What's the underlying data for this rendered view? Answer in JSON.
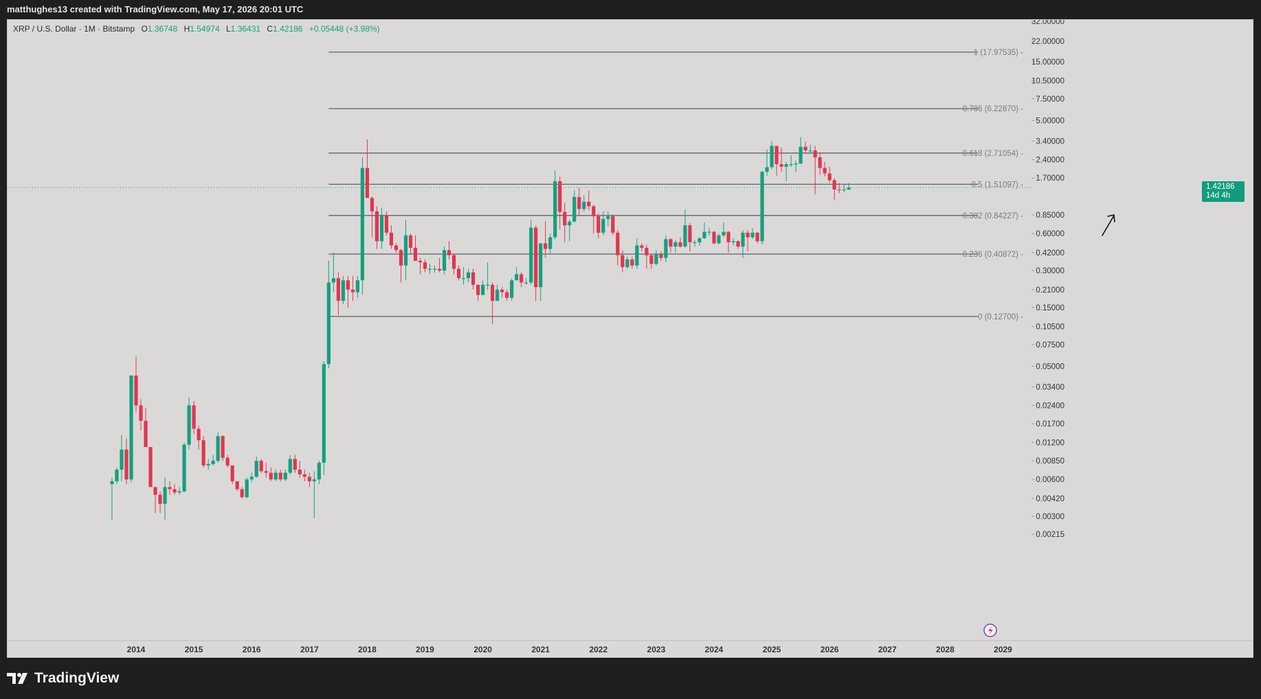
{
  "header": {
    "attribution": "matthughes13 created with TradingView.com, May 17, 2026 20:01 UTC"
  },
  "legend": {
    "symbol": "XRP / U.S. Dollar · 1M · Bitstamp",
    "open_label": "O",
    "open": "1.36748",
    "high_label": "H",
    "high": "1.54974",
    "low_label": "L",
    "low": "1.36431",
    "close_label": "C",
    "close": "1.42186",
    "change": "+0.05448 (+3.98%)"
  },
  "price_tag": {
    "value": "1.42186",
    "countdown": "14d 4h"
  },
  "footer": {
    "brand": "TradingView"
  },
  "colors": {
    "up": "#159f7e",
    "down": "#e0364f",
    "fib_line": "#59606e",
    "background": "#dad9d8",
    "axis_text": "#333333",
    "fib_text": "#7b7b7b"
  },
  "chart_data": {
    "type": "candlestick",
    "title": "XRP / U.S. Dollar · 1M · Bitstamp",
    "y_scale": "log",
    "y_ticks": [
      "32.00000",
      "22.00000",
      "15.00000",
      "10.50000",
      "7.50000",
      "5.00000",
      "3.40000",
      "2.40000",
      "1.70000",
      "0.85000",
      "0.60000",
      "0.42000",
      "0.30000",
      "0.21000",
      "0.15000",
      "0.10500",
      "0.07500",
      "0.05000",
      "0.03400",
      "0.02400",
      "0.01700",
      "0.01200",
      "0.00850",
      "0.00600",
      "0.00420",
      "0.00300",
      "0.00215"
    ],
    "x_ticks": [
      "2014",
      "2015",
      "2016",
      "2017",
      "2018",
      "2019",
      "2020",
      "2021",
      "2022",
      "2023",
      "2024",
      "2025",
      "2026",
      "2027",
      "2028",
      "2029"
    ],
    "grid": false,
    "fib_levels": [
      {
        "label": "1 (17.97535)",
        "price": 17.97535
      },
      {
        "label": "0.786 (6.22870)",
        "price": 6.2287
      },
      {
        "label": "0.618 (2.71054)",
        "price": 2.71054
      },
      {
        "label": "0.5 (1.51097)",
        "price": 1.51097
      },
      {
        "label": "0.382 (0.84227)",
        "price": 0.84227
      },
      {
        "label": "0.236 (0.40872)",
        "price": 0.40872
      },
      {
        "label": "0 (0.12700)",
        "price": 0.127
      }
    ],
    "fib_start": "2017-05",
    "last_price": 1.42186,
    "candles_monthly_approx": [
      [
        "2013-08",
        0.0055,
        0.0062,
        0.0028,
        0.0058
      ],
      [
        "2013-09",
        0.0058,
        0.0075,
        0.0055,
        0.0072
      ],
      [
        "2013-10",
        0.0072,
        0.0138,
        0.0058,
        0.0105
      ],
      [
        "2013-11",
        0.0105,
        0.013,
        0.0055,
        0.006
      ],
      [
        "2013-12",
        0.006,
        0.042,
        0.0057,
        0.042
      ],
      [
        "2014-01",
        0.042,
        0.06,
        0.021,
        0.024
      ],
      [
        "2014-02",
        0.024,
        0.027,
        0.015,
        0.018
      ],
      [
        "2014-03",
        0.018,
        0.023,
        0.012,
        0.011
      ],
      [
        "2014-04",
        0.011,
        0.011,
        0.0058,
        0.0052
      ],
      [
        "2014-05",
        0.0052,
        0.0052,
        0.0032,
        0.0045
      ],
      [
        "2014-06",
        0.0045,
        0.0048,
        0.0032,
        0.0038
      ],
      [
        "2014-07",
        0.0038,
        0.0062,
        0.0028,
        0.0052
      ],
      [
        "2014-08",
        0.0052,
        0.0058,
        0.0045,
        0.005
      ],
      [
        "2014-09",
        0.005,
        0.0055,
        0.0045,
        0.0047
      ],
      [
        "2014-10",
        0.0047,
        0.0052,
        0.0045,
        0.0048
      ],
      [
        "2014-11",
        0.0048,
        0.012,
        0.0047,
        0.0115
      ],
      [
        "2014-12",
        0.0115,
        0.028,
        0.0105,
        0.024
      ],
      [
        "2015-01",
        0.024,
        0.026,
        0.014,
        0.0155
      ],
      [
        "2015-02",
        0.0155,
        0.0165,
        0.0105,
        0.0125
      ],
      [
        "2015-03",
        0.0125,
        0.0135,
        0.0075,
        0.0078
      ],
      [
        "2015-04",
        0.0078,
        0.0088,
        0.0072,
        0.008
      ],
      [
        "2015-05",
        0.008,
        0.0095,
        0.0078,
        0.0085
      ],
      [
        "2015-06",
        0.0085,
        0.0145,
        0.0082,
        0.0135
      ],
      [
        "2015-07",
        0.0135,
        0.0138,
        0.0085,
        0.009
      ],
      [
        "2015-08",
        0.009,
        0.0095,
        0.0075,
        0.0078
      ],
      [
        "2015-09",
        0.0078,
        0.0078,
        0.0055,
        0.0058
      ],
      [
        "2015-10",
        0.0058,
        0.0058,
        0.0048,
        0.005
      ],
      [
        "2015-11",
        0.005,
        0.0052,
        0.0042,
        0.0043
      ],
      [
        "2015-12",
        0.0043,
        0.0062,
        0.0042,
        0.006
      ],
      [
        "2016-01",
        0.006,
        0.0068,
        0.0057,
        0.0063
      ],
      [
        "2016-02",
        0.0063,
        0.0092,
        0.0062,
        0.0085
      ],
      [
        "2016-03",
        0.0085,
        0.0088,
        0.0068,
        0.007
      ],
      [
        "2016-04",
        0.007,
        0.0082,
        0.0062,
        0.0068
      ],
      [
        "2016-05",
        0.0068,
        0.0075,
        0.0058,
        0.006
      ],
      [
        "2016-06",
        0.006,
        0.0072,
        0.0058,
        0.0068
      ],
      [
        "2016-07",
        0.0068,
        0.0072,
        0.0058,
        0.006
      ],
      [
        "2016-08",
        0.006,
        0.0072,
        0.0058,
        0.0068
      ],
      [
        "2016-09",
        0.0068,
        0.0095,
        0.0066,
        0.0088
      ],
      [
        "2016-10",
        0.0088,
        0.0095,
        0.0068,
        0.0072
      ],
      [
        "2016-11",
        0.0072,
        0.0085,
        0.0062,
        0.0066
      ],
      [
        "2016-12",
        0.0066,
        0.0072,
        0.0058,
        0.0063
      ],
      [
        "2017-01",
        0.0063,
        0.0068,
        0.0052,
        0.0058
      ],
      [
        "2017-02",
        0.0058,
        0.007,
        0.0029,
        0.006
      ],
      [
        "2017-03",
        0.006,
        0.0085,
        0.0055,
        0.0082
      ],
      [
        "2017-04",
        0.0082,
        0.055,
        0.0065,
        0.052
      ],
      [
        "2017-05",
        0.052,
        0.36,
        0.048,
        0.24
      ],
      [
        "2017-06",
        0.24,
        0.42,
        0.2,
        0.26
      ],
      [
        "2017-07",
        0.26,
        0.29,
        0.13,
        0.17
      ],
      [
        "2017-08",
        0.17,
        0.27,
        0.16,
        0.25
      ],
      [
        "2017-09",
        0.25,
        0.27,
        0.15,
        0.21
      ],
      [
        "2017-10",
        0.21,
        0.27,
        0.17,
        0.2
      ],
      [
        "2017-11",
        0.2,
        0.27,
        0.18,
        0.25
      ],
      [
        "2017-12",
        0.25,
        2.5,
        0.19,
        2.05
      ],
      [
        "2018-01",
        2.05,
        3.5,
        1.2,
        1.17
      ],
      [
        "2018-02",
        1.17,
        1.2,
        0.56,
        0.91
      ],
      [
        "2018-03",
        0.91,
        1.0,
        0.45,
        0.52
      ],
      [
        "2018-04",
        0.52,
        0.97,
        0.45,
        0.84
      ],
      [
        "2018-05",
        0.84,
        0.91,
        0.58,
        0.61
      ],
      [
        "2018-06",
        0.61,
        0.7,
        0.45,
        0.48
      ],
      [
        "2018-07",
        0.48,
        0.5,
        0.42,
        0.44
      ],
      [
        "2018-08",
        0.44,
        0.45,
        0.24,
        0.33
      ],
      [
        "2018-09",
        0.33,
        0.78,
        0.25,
        0.58
      ],
      [
        "2018-10",
        0.58,
        0.6,
        0.41,
        0.46
      ],
      [
        "2018-11",
        0.46,
        0.58,
        0.36,
        0.36
      ],
      [
        "2018-12",
        0.36,
        0.38,
        0.28,
        0.35
      ],
      [
        "2019-01",
        0.35,
        0.37,
        0.29,
        0.31
      ],
      [
        "2019-02",
        0.31,
        0.34,
        0.28,
        0.31
      ],
      [
        "2019-03",
        0.31,
        0.33,
        0.29,
        0.31
      ],
      [
        "2019-04",
        0.31,
        0.38,
        0.29,
        0.3
      ],
      [
        "2019-05",
        0.3,
        0.47,
        0.28,
        0.44
      ],
      [
        "2019-06",
        0.44,
        0.52,
        0.37,
        0.4
      ],
      [
        "2019-07",
        0.4,
        0.41,
        0.28,
        0.31
      ],
      [
        "2019-08",
        0.31,
        0.33,
        0.25,
        0.26
      ],
      [
        "2019-09",
        0.26,
        0.32,
        0.23,
        0.26
      ],
      [
        "2019-10",
        0.26,
        0.31,
        0.24,
        0.29
      ],
      [
        "2019-11",
        0.29,
        0.31,
        0.21,
        0.23
      ],
      [
        "2019-12",
        0.23,
        0.23,
        0.17,
        0.19
      ],
      [
        "2020-01",
        0.19,
        0.25,
        0.19,
        0.23
      ],
      [
        "2020-02",
        0.23,
        0.35,
        0.21,
        0.23
      ],
      [
        "2020-03",
        0.23,
        0.24,
        0.11,
        0.17
      ],
      [
        "2020-04",
        0.17,
        0.23,
        0.17,
        0.21
      ],
      [
        "2020-05",
        0.21,
        0.22,
        0.18,
        0.2
      ],
      [
        "2020-06",
        0.2,
        0.21,
        0.17,
        0.18
      ],
      [
        "2020-07",
        0.18,
        0.26,
        0.17,
        0.25
      ],
      [
        "2020-08",
        0.25,
        0.32,
        0.25,
        0.28
      ],
      [
        "2020-09",
        0.28,
        0.29,
        0.22,
        0.24
      ],
      [
        "2020-10",
        0.24,
        0.26,
        0.23,
        0.24
      ],
      [
        "2020-11",
        0.24,
        0.78,
        0.23,
        0.67
      ],
      [
        "2020-12",
        0.67,
        0.7,
        0.17,
        0.22
      ],
      [
        "2021-01",
        0.22,
        0.44,
        0.17,
        0.5
      ],
      [
        "2021-02",
        0.5,
        0.76,
        0.38,
        0.45
      ],
      [
        "2021-03",
        0.45,
        0.6,
        0.41,
        0.56
      ],
      [
        "2021-04",
        0.56,
        1.96,
        0.54,
        1.6
      ],
      [
        "2021-05",
        1.6,
        1.75,
        0.65,
        0.9
      ],
      [
        "2021-06",
        0.9,
        1.07,
        0.51,
        0.7
      ],
      [
        "2021-07",
        0.7,
        0.78,
        0.52,
        0.75
      ],
      [
        "2021-08",
        0.75,
        1.35,
        0.74,
        1.19
      ],
      [
        "2021-09",
        1.19,
        1.41,
        0.85,
        0.95
      ],
      [
        "2021-10",
        0.95,
        1.23,
        0.9,
        1.09
      ],
      [
        "2021-11",
        1.09,
        1.35,
        0.93,
        1.0
      ],
      [
        "2021-12",
        1.0,
        1.03,
        0.6,
        0.83
      ],
      [
        "2022-01",
        0.83,
        0.88,
        0.55,
        0.61
      ],
      [
        "2022-02",
        0.61,
        0.91,
        0.58,
        0.79
      ],
      [
        "2022-03",
        0.79,
        0.91,
        0.69,
        0.83
      ],
      [
        "2022-04",
        0.83,
        0.86,
        0.58,
        0.61
      ],
      [
        "2022-05",
        0.61,
        0.64,
        0.33,
        0.4
      ],
      [
        "2022-06",
        0.4,
        0.44,
        0.29,
        0.32
      ],
      [
        "2022-07",
        0.32,
        0.39,
        0.31,
        0.37
      ],
      [
        "2022-08",
        0.37,
        0.39,
        0.31,
        0.33
      ],
      [
        "2022-09",
        0.33,
        0.55,
        0.31,
        0.48
      ],
      [
        "2022-10",
        0.48,
        0.5,
        0.43,
        0.46
      ],
      [
        "2022-11",
        0.46,
        0.49,
        0.31,
        0.4
      ],
      [
        "2022-12",
        0.4,
        0.41,
        0.31,
        0.34
      ],
      [
        "2023-01",
        0.34,
        0.44,
        0.33,
        0.41
      ],
      [
        "2023-02",
        0.41,
        0.43,
        0.36,
        0.38
      ],
      [
        "2023-03",
        0.38,
        0.58,
        0.35,
        0.54
      ],
      [
        "2023-04",
        0.54,
        0.55,
        0.42,
        0.47
      ],
      [
        "2023-05",
        0.47,
        0.53,
        0.42,
        0.51
      ],
      [
        "2023-06",
        0.51,
        0.56,
        0.46,
        0.47
      ],
      [
        "2023-07",
        0.47,
        0.94,
        0.46,
        0.7
      ],
      [
        "2023-08",
        0.7,
        0.73,
        0.43,
        0.51
      ],
      [
        "2023-09",
        0.51,
        0.53,
        0.47,
        0.51
      ],
      [
        "2023-10",
        0.51,
        0.56,
        0.48,
        0.55
      ],
      [
        "2023-11",
        0.55,
        0.74,
        0.54,
        0.62
      ],
      [
        "2023-12",
        0.62,
        0.67,
        0.58,
        0.62
      ],
      [
        "2024-01",
        0.62,
        0.63,
        0.49,
        0.5
      ],
      [
        "2024-02",
        0.5,
        0.6,
        0.49,
        0.58
      ],
      [
        "2024-03",
        0.58,
        0.74,
        0.56,
        0.62
      ],
      [
        "2024-04",
        0.62,
        0.63,
        0.42,
        0.51
      ],
      [
        "2024-05",
        0.51,
        0.55,
        0.48,
        0.52
      ],
      [
        "2024-06",
        0.52,
        0.53,
        0.45,
        0.47
      ],
      [
        "2024-07",
        0.47,
        0.64,
        0.38,
        0.61
      ],
      [
        "2024-08",
        0.61,
        0.64,
        0.43,
        0.56
      ],
      [
        "2024-09",
        0.56,
        0.66,
        0.54,
        0.61
      ],
      [
        "2024-10",
        0.61,
        0.62,
        0.5,
        0.52
      ],
      [
        "2024-11",
        0.52,
        1.95,
        0.49,
        1.91
      ],
      [
        "2024-12",
        1.91,
        2.9,
        1.77,
        2.08
      ],
      [
        "2025-01",
        2.08,
        3.4,
        2.0,
        3.1
      ],
      [
        "2025-02",
        3.1,
        3.1,
        1.77,
        2.2
      ],
      [
        "2025-03",
        2.2,
        3.0,
        1.9,
        2.1
      ],
      [
        "2025-04",
        2.1,
        2.3,
        1.6,
        2.2
      ],
      [
        "2025-05",
        2.2,
        2.6,
        2.1,
        2.2
      ],
      [
        "2025-06",
        2.2,
        2.35,
        1.9,
        2.23
      ],
      [
        "2025-07",
        2.23,
        3.66,
        2.2,
        3.05
      ],
      [
        "2025-08",
        3.05,
        3.35,
        2.72,
        2.85
      ],
      [
        "2025-09",
        2.85,
        3.18,
        2.7,
        2.85
      ],
      [
        "2025-10",
        2.85,
        3.1,
        1.25,
        2.5
      ],
      [
        "2025-11",
        2.5,
        2.7,
        1.8,
        2.05
      ],
      [
        "2025-12",
        2.05,
        2.3,
        1.75,
        1.85
      ],
      [
        "2026-01",
        1.85,
        2.1,
        1.55,
        1.63
      ],
      [
        "2026-02",
        1.63,
        1.7,
        1.12,
        1.37
      ],
      [
        "2026-03",
        1.37,
        1.55,
        1.28,
        1.36
      ],
      [
        "2026-04",
        1.36,
        1.5,
        1.3,
        1.37
      ],
      [
        "2026-05",
        1.36748,
        1.54974,
        1.36431,
        1.42186
      ]
    ]
  }
}
